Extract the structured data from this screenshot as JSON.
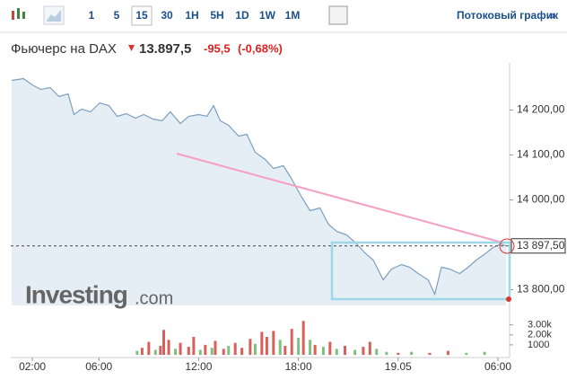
{
  "toolbar": {
    "periods": [
      "1",
      "5",
      "15",
      "30",
      "1H",
      "5H",
      "1D",
      "1W",
      "1M"
    ],
    "active": 2,
    "stream_link": "Потоковый график",
    "stream_arrow": "»"
  },
  "header": {
    "name": "Фьючерс на DAX",
    "price": "13.897,5",
    "change": "-95,5",
    "change_pct": "(-0,68%)"
  },
  "watermark": {
    "brand": "Investing",
    "suffix": ".com"
  },
  "chart_data": {
    "type": "area",
    "x": [
      0.76,
      1.46,
      2,
      2.5,
      3.07,
      3.6,
      4.15,
      4.5,
      4.95,
      5.5,
      6.05,
      6.6,
      7.1,
      7.65,
      8.2,
      8.7,
      9.25,
      9.8,
      10.3,
      10.9,
      11.4,
      12,
      12.5,
      12.9,
      13.3,
      13.8,
      14.4,
      14.9,
      15.4,
      16,
      16.5,
      17.1,
      17.6,
      18.2,
      18.7,
      19.3,
      19.8,
      20.3,
      20.9,
      21.4,
      22,
      22.5,
      23.1,
      23.6,
      24.2,
      24.7,
      25.2,
      25.8,
      26.2,
      26.6,
      27.1,
      27.7,
      28.2,
      28.7,
      29.3,
      29.7,
      30.2,
      30.5
    ],
    "series": [
      {
        "color": "#7c9fbf",
        "fill": "#e6eef5",
        "values": [
          14266,
          14270,
          14256,
          14246,
          14250,
          14230,
          14236,
          14190,
          14202,
          14196,
          14216,
          14210,
          14186,
          14192,
          14182,
          14190,
          14180,
          14176,
          14196,
          14170,
          14186,
          14190,
          14186,
          14210,
          14176,
          14166,
          14142,
          14146,
          14106,
          14090,
          14070,
          14076,
          14046,
          14006,
          13976,
          13982,
          13946,
          13930,
          13922,
          13906,
          13882,
          13866,
          13822,
          13846,
          13856,
          13850,
          13836,
          13822,
          13790,
          13850,
          13846,
          13836,
          13850,
          13866,
          13882,
          13894,
          13902,
          13897.5
        ]
      },
      {
        "type": "bar",
        "axis": "y2",
        "up_color": "#7fbf7f",
        "down_color": "#d9605a",
        "x": [
          8.3,
          8.6,
          9.0,
          9.4,
          9.7,
          9.9,
          10.2,
          10.6,
          10.9,
          11.4,
          11.7,
          12.1,
          12.4,
          12.8,
          13.0,
          13.5,
          13.8,
          14.2,
          14.6,
          15.1,
          15.4,
          15.8,
          16.1,
          16.5,
          16.9,
          17.2,
          17.6,
          18.0,
          18.3,
          18.7,
          19.0,
          19.5,
          19.9,
          20.3,
          20.8,
          21.4,
          21.9,
          22.3,
          22.7,
          23.3,
          24.0,
          24.8,
          25.9,
          27.0,
          28.1,
          29.2
        ],
        "values": [
          400,
          700,
          1300,
          500,
          900,
          2500,
          1500,
          600,
          1200,
          800,
          1800,
          500,
          1000,
          700,
          1400,
          600,
          900,
          1200,
          700,
          1600,
          1100,
          2300,
          1800,
          2400,
          1500,
          900,
          2600,
          1700,
          3400,
          1500,
          1000,
          800,
          1300,
          600,
          900,
          500,
          800,
          1300,
          600,
          300,
          200,
          300,
          200,
          400,
          200,
          300
        ],
        "up": [
          true,
          false,
          false,
          true,
          false,
          false,
          false,
          true,
          false,
          false,
          false,
          true,
          false,
          true,
          false,
          false,
          true,
          false,
          false,
          false,
          true,
          false,
          false,
          false,
          true,
          false,
          false,
          true,
          false,
          true,
          false,
          true,
          false,
          true,
          false,
          true,
          false,
          false,
          true,
          true,
          false,
          true,
          false,
          false,
          true,
          true
        ]
      }
    ],
    "xlim": [
      0.7,
      30.7
    ],
    "xticks": [
      {
        "value": 2,
        "label": "02:00"
      },
      {
        "value": 6,
        "label": "06:00"
      },
      {
        "value": 12,
        "label": "12:00"
      },
      {
        "value": 18,
        "label": "18:00"
      },
      {
        "value": 24,
        "label": "19.05"
      },
      {
        "value": 30,
        "label": "06:00"
      }
    ],
    "ylim": [
      13765,
      14285
    ],
    "yticks": [
      {
        "value": 13800,
        "label": "13 800,00"
      },
      {
        "value": 14000,
        "label": "14 000,00"
      },
      {
        "value": 14100,
        "label": "14 100,00"
      },
      {
        "value": 14200,
        "label": "14 200,00"
      }
    ],
    "y2lim": [
      0,
      3600
    ],
    "y2ticks": [
      1000,
      {
        "value": 2000,
        "label": "2.00k"
      },
      {
        "value": 3000,
        "label": "3.00k"
      }
    ],
    "last_price": {
      "value": 13897.5,
      "label": "13 897,50"
    }
  }
}
